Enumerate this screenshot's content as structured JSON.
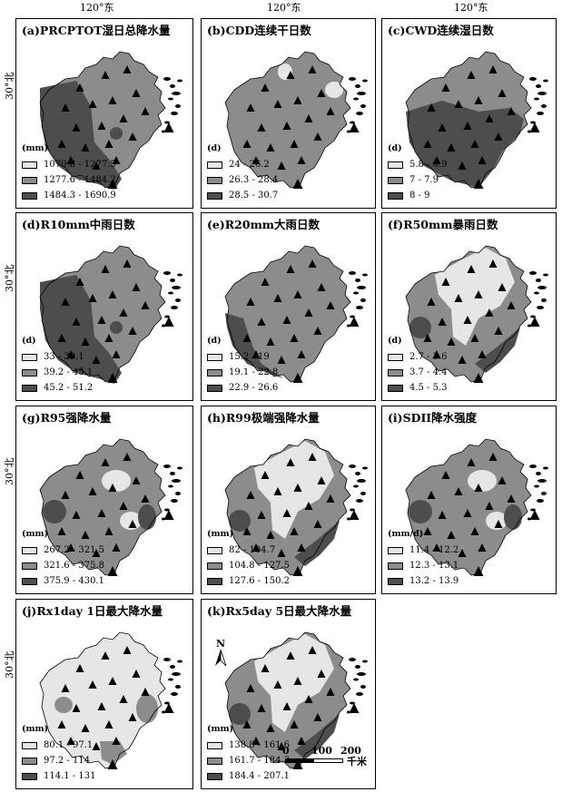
{
  "axis": {
    "lon_label": "120°东",
    "lat_label": "30°北"
  },
  "colors": {
    "low": "#e6e6e6",
    "mid": "#8c8c8c",
    "high": "#4d4d4d",
    "marker": "#000000"
  },
  "panels": [
    {
      "id": "a",
      "title": "(a)PRCPTOT湿日总降水量",
      "unit": "(mm)",
      "classes": [
        "1070.8 - 1277.5",
        "1277.6 - 1484.2",
        "1484.3 - 1690.9"
      ],
      "pattern": "west-dark"
    },
    {
      "id": "b",
      "title": "(b)CDD连续干日数",
      "unit": "(d)",
      "classes": [
        "24 - 26.2",
        "26.3 - 28.4",
        "28.5 - 30.7"
      ],
      "pattern": "mostly-mid"
    },
    {
      "id": "c",
      "title": "(c)CWD连续湿日数",
      "unit": "(d)",
      "classes": [
        "5.8 - 6.9",
        "7 - 7.9",
        "8 - 9"
      ],
      "pattern": "south-dark"
    },
    {
      "id": "d",
      "title": "(d)R10mm中雨日数",
      "unit": "(d)",
      "classes": [
        "33 - 39.1",
        "39.2 - 45.1",
        "45.2 - 51.2"
      ],
      "pattern": "west-dark"
    },
    {
      "id": "e",
      "title": "(e)R20mm大雨日数",
      "unit": "(d)",
      "classes": [
        "15.2 - 19",
        "19.1 - 22.8",
        "22.9 - 26.6"
      ],
      "pattern": "west-strip"
    },
    {
      "id": "f",
      "title": "(f)R50mm暴雨日数",
      "unit": "(d)",
      "classes": [
        "2.7 - 3.6",
        "3.7 - 4.4",
        "4.5 - 5.3"
      ],
      "pattern": "north-light"
    },
    {
      "id": "g",
      "title": "(g)R95强降水量",
      "unit": "(mm)",
      "classes": [
        "267.2 - 321.5",
        "321.6 - 375.8",
        "375.9 - 430.1"
      ],
      "pattern": "mid-spots"
    },
    {
      "id": "h",
      "title": "(h)R99极端强降水量",
      "unit": "(mm)",
      "classes": [
        "82 - 104.7",
        "104.8 - 127.5",
        "127.6 - 150.2"
      ],
      "pattern": "north-light"
    },
    {
      "id": "i",
      "title": "(i)SDII降水强度",
      "unit": "(mm/d)",
      "classes": [
        "11.4 - 12.2",
        "12.3 - 13.1",
        "13.2 - 13.9"
      ],
      "pattern": "mid-spots"
    },
    {
      "id": "j",
      "title": "(j)Rx1day 1日最大降水量",
      "unit": "(mm)",
      "classes": [
        "80.1 - 97.1",
        "97.2 - 114",
        "114.1 - 131"
      ],
      "pattern": "mostly-light"
    },
    {
      "id": "k",
      "title": "(k)Rx5day 5日最大降水量",
      "unit": "(mm)",
      "classes": [
        "138.8 - 161.6",
        "161.7 - 184.3",
        "184.4 - 207.1"
      ],
      "pattern": "north-light"
    }
  ],
  "scale": {
    "ticks": [
      "0",
      "100",
      "200"
    ],
    "unit": "千米"
  },
  "north": "N"
}
